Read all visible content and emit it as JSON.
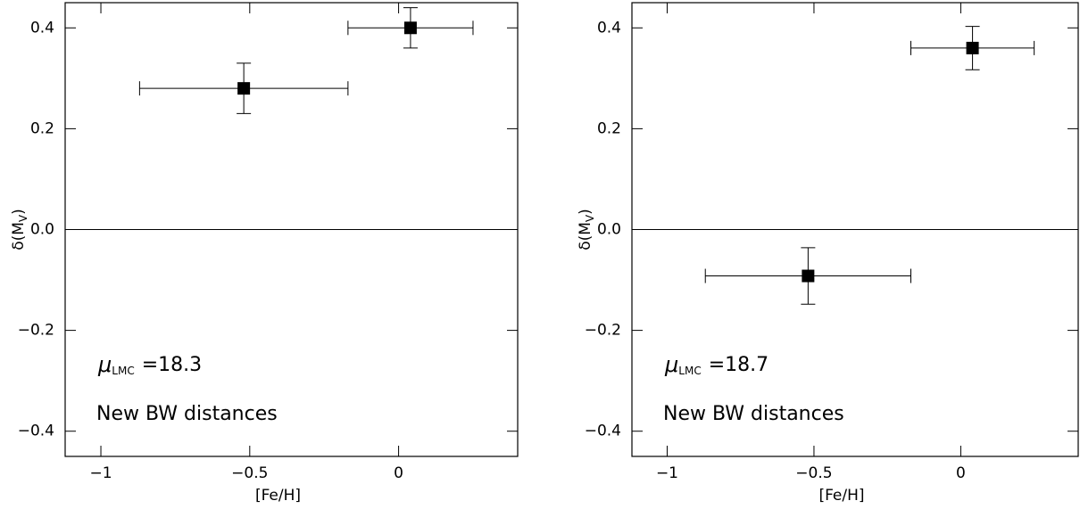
{
  "chart_data": [
    {
      "type": "scatter",
      "xlabel": "[Fe/H]",
      "ylabel": {
        "text": "δ(M",
        "subscript": "V",
        "suffix": ")"
      },
      "xlim": [
        -1.12,
        0.4
      ],
      "ylim": [
        -0.45,
        0.45
      ],
      "xticks": [
        {
          "value": -1,
          "label": "−1"
        },
        {
          "value": -0.5,
          "label": "−0.5"
        },
        0
      ],
      "yticks": [
        {
          "value": -0.4,
          "label": "−0.4"
        },
        {
          "value": -0.2,
          "label": "−0.2"
        },
        {
          "value": 0,
          "label": "0.0"
        },
        0.2,
        0.4
      ],
      "hline": 0,
      "series": [
        {
          "color": "#000000",
          "x": [
            -0.52,
            0.04
          ],
          "values": [
            0.28,
            0.4
          ],
          "xerr": [
            0.35,
            0.21
          ],
          "yerr": [
            0.05,
            0.04
          ]
        }
      ],
      "annotations": [
        {
          "symbol": "μ",
          "subscript": "LMC",
          "text": "=18.3"
        },
        {
          "text": "New BW distances"
        }
      ]
    },
    {
      "type": "scatter",
      "xlabel": "[Fe/H]",
      "ylabel": {
        "text": "δ(M",
        "subscript": "V",
        "suffix": ")"
      },
      "xlim": [
        -1.12,
        0.4
      ],
      "ylim": [
        -0.45,
        0.45
      ],
      "xticks": [
        {
          "value": -1,
          "label": "−1"
        },
        {
          "value": -0.5,
          "label": "−0.5"
        },
        0
      ],
      "yticks": [
        {
          "value": -0.4,
          "label": "−0.4"
        },
        {
          "value": -0.2,
          "label": "−0.2"
        },
        {
          "value": 0,
          "label": "0.0"
        },
        0.2,
        0.4
      ],
      "hline": 0,
      "series": [
        {
          "color": "#000000",
          "x": [
            -0.52,
            0.04
          ],
          "values": [
            -0.092,
            0.36
          ],
          "xerr": [
            0.35,
            0.21
          ],
          "yerr": [
            0.056,
            0.043
          ]
        }
      ],
      "annotations": [
        {
          "symbol": "μ",
          "subscript": "LMC",
          "text": "=18.7"
        },
        {
          "text": "New BW distances"
        }
      ]
    }
  ]
}
